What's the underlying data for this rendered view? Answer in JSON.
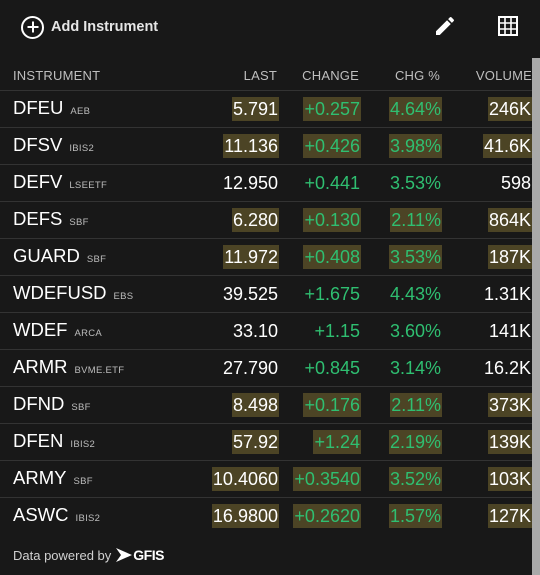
{
  "toolbar": {
    "add_label": "Add Instrument",
    "icons": [
      "add-circle-icon",
      "pencil-icon",
      "grid-icon"
    ]
  },
  "colors": {
    "positive": "#2fbf71",
    "highlight": "#4c4425",
    "background": "#181818"
  },
  "table": {
    "headers": {
      "instrument": "INSTRUMENT",
      "last": "LAST",
      "change": "CHANGE",
      "pct": "CHG %",
      "volume": "VOLUME"
    },
    "rows": [
      {
        "symbol": "DFEU",
        "exchange": "AEB",
        "last": "5.791",
        "change": "+0.257",
        "pct": "4.64%",
        "volume": "246K",
        "hl_last": true,
        "hl_chg": true,
        "hl_pct": true,
        "hl_vol": true
      },
      {
        "symbol": "DFSV",
        "exchange": "IBIS2",
        "last": "11.136",
        "change": "+0.426",
        "pct": "3.98%",
        "volume": "41.6K",
        "hl_last": true,
        "hl_chg": true,
        "hl_pct": true,
        "hl_vol": true
      },
      {
        "symbol": "DEFV",
        "exchange": "LSEETF",
        "last": "12.950",
        "change": "+0.441",
        "pct": "3.53%",
        "volume": "598",
        "hl_last": false,
        "hl_chg": false,
        "hl_pct": false,
        "hl_vol": false
      },
      {
        "symbol": "DEFS",
        "exchange": "SBF",
        "last": "6.280",
        "change": "+0.130",
        "pct": "2.11%",
        "volume": "864K",
        "hl_last": true,
        "hl_chg": true,
        "hl_pct": true,
        "hl_vol": true
      },
      {
        "symbol": "GUARD",
        "exchange": "SBF",
        "last": "11.972",
        "change": "+0.408",
        "pct": "3.53%",
        "volume": "187K",
        "hl_last": true,
        "hl_chg": true,
        "hl_pct": true,
        "hl_vol": true
      },
      {
        "symbol": "WDEFUSD",
        "exchange": "EBS",
        "last": "39.525",
        "change": "+1.675",
        "pct": "4.43%",
        "volume": "1.31K",
        "hl_last": false,
        "hl_chg": false,
        "hl_pct": false,
        "hl_vol": false
      },
      {
        "symbol": "WDEF",
        "exchange": "ARCA",
        "last": "33.10",
        "change": "+1.15",
        "pct": "3.60%",
        "volume": "141K",
        "hl_last": false,
        "hl_chg": false,
        "hl_pct": false,
        "hl_vol": false
      },
      {
        "symbol": "ARMR",
        "exchange": "BVME.ETF",
        "last": "27.790",
        "change": "+0.845",
        "pct": "3.14%",
        "volume": "16.2K",
        "hl_last": false,
        "hl_chg": false,
        "hl_pct": false,
        "hl_vol": false
      },
      {
        "symbol": "DFND",
        "exchange": "SBF",
        "last": "8.498",
        "change": "+0.176",
        "pct": "2.11%",
        "volume": "373K",
        "hl_last": true,
        "hl_chg": true,
        "hl_pct": true,
        "hl_vol": true
      },
      {
        "symbol": "DFEN",
        "exchange": "IBIS2",
        "last": "57.92",
        "change": "+1.24",
        "pct": "2.19%",
        "volume": "139K",
        "hl_last": true,
        "hl_chg": true,
        "hl_pct": true,
        "hl_vol": true
      },
      {
        "symbol": "ARMY",
        "exchange": "SBF",
        "last": "10.4060",
        "change": "+0.3540",
        "pct": "3.52%",
        "volume": "103K",
        "hl_last": true,
        "hl_chg": true,
        "hl_pct": true,
        "hl_vol": true
      },
      {
        "symbol": "ASWC",
        "exchange": "IBIS2",
        "last": "16.9800",
        "change": "+0.2620",
        "pct": "1.57%",
        "volume": "127K",
        "hl_last": true,
        "hl_chg": true,
        "hl_pct": true,
        "hl_vol": true
      }
    ]
  },
  "footer": {
    "text": "Data powered by",
    "logo": "GFIS"
  }
}
